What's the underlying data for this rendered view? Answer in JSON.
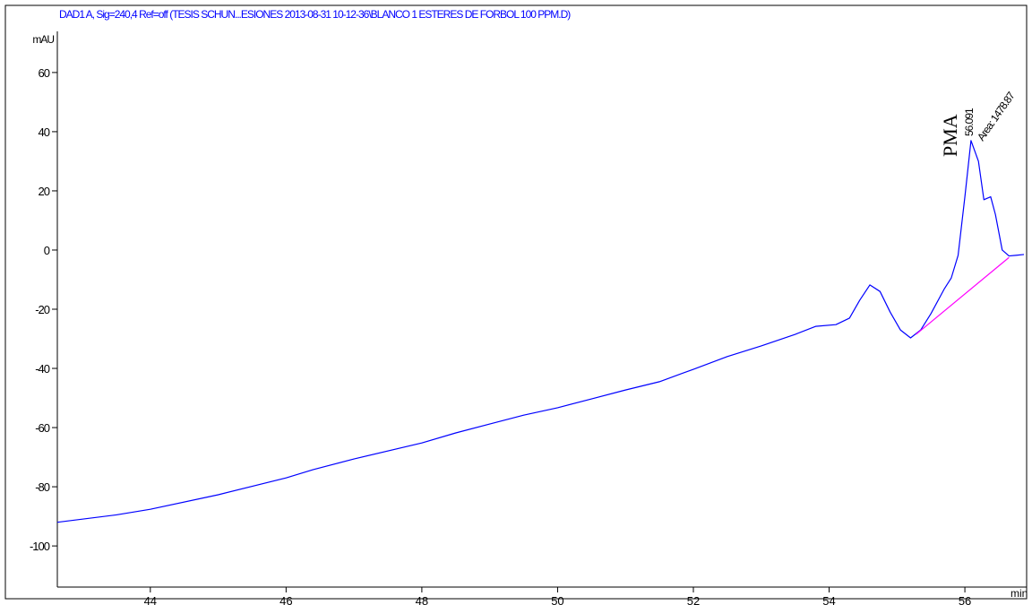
{
  "chart_data": {
    "type": "line",
    "title": "DAD1 A, Sig=240,4 Ref=off (TESIS SCHUN...ESIONES 2013-08-31 10-12-36\\BLANCO 1 ESTERES DE FORBOL 100 PPM.D)",
    "y_unit": "mAU",
    "x_unit": "min",
    "annotations": {
      "peak_label": "PMA",
      "retention_time": "56.091",
      "area": "Area: 1478.87"
    },
    "xlim": [
      42.63,
      56.87
    ],
    "ylim": [
      -113.9,
      73.9
    ],
    "xticks": [
      44,
      46,
      48,
      50,
      52,
      54,
      56
    ],
    "yticks": [
      -100,
      -80,
      -60,
      -40,
      -20,
      0,
      20,
      40,
      60
    ],
    "series": [
      {
        "name": "signal",
        "color": "#0000ff",
        "x": [
          42.63,
          43.5,
          44,
          45,
          46,
          46.4,
          47,
          48,
          48.5,
          49,
          49.5,
          50,
          50.5,
          51,
          51.5,
          52,
          52.5,
          53,
          53.5,
          53.8,
          54.1,
          54.3,
          54.45,
          54.6,
          54.75,
          54.9,
          55.05,
          55.2,
          55.35,
          55.5,
          55.7,
          55.8,
          55.9,
          56.0,
          56.09,
          56.2,
          56.28,
          56.38,
          56.45,
          56.55,
          56.65,
          56.75,
          56.87
        ],
        "values": [
          -92,
          -89.5,
          -87.6,
          -82.7,
          -77,
          -74.2,
          -70.6,
          -65.2,
          -61.8,
          -58.8,
          -55.8,
          -53.3,
          -50.3,
          -47.3,
          -44.5,
          -40.3,
          -36,
          -32.4,
          -28.5,
          -25.8,
          -25.2,
          -23,
          -17,
          -11.8,
          -14,
          -21,
          -27,
          -29.7,
          -27,
          -21.5,
          -13,
          -9.4,
          -1.8,
          18,
          37,
          30,
          17,
          18,
          12,
          0,
          -2,
          -1.8,
          -1.5
        ]
      },
      {
        "name": "baseline",
        "color": "#ff00ff",
        "x": [
          55.28,
          56.65
        ],
        "values": [
          -28.5,
          -2.5
        ]
      }
    ]
  }
}
